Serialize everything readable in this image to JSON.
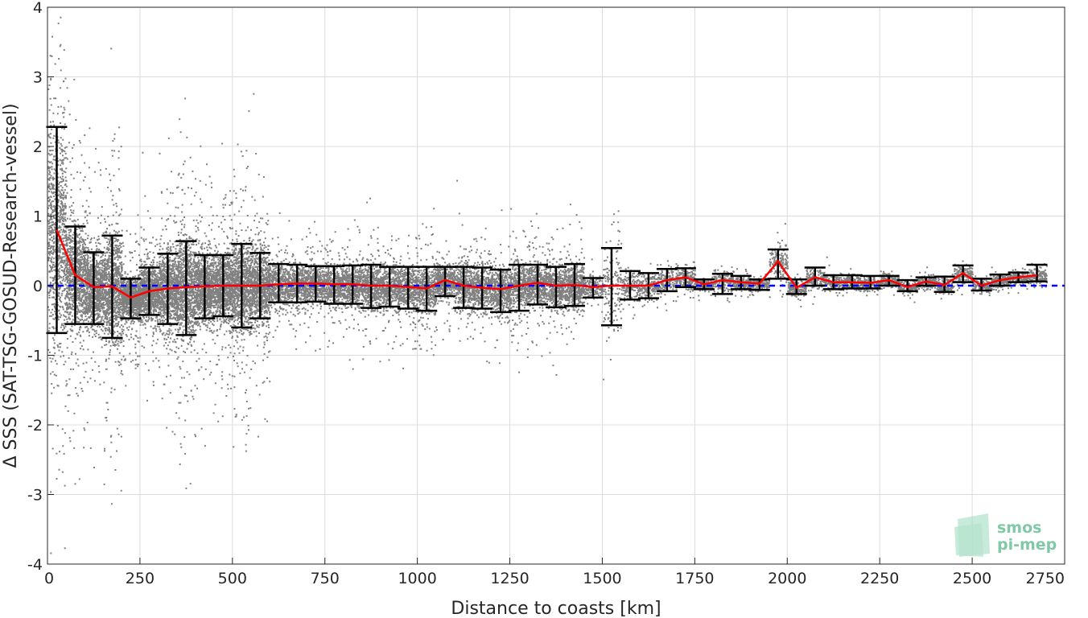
{
  "chart_data": {
    "type": "scatter",
    "xlabel": "Distance to coasts [km]",
    "ylabel": "Δ SSS (SAT-TSG-GOSUD-Research-vessel)",
    "xlim": [
      0,
      2750
    ],
    "ylim": [
      -4,
      4
    ],
    "xticks": [
      0,
      250,
      500,
      750,
      1000,
      1250,
      1500,
      1750,
      2000,
      2250,
      2500,
      2750
    ],
    "yticks": [
      -4,
      -3,
      -2,
      -1,
      0,
      1,
      2,
      3,
      4
    ],
    "grid": true,
    "scatter_color": "#808080",
    "mean_line_color": "#ff0000",
    "errorbar_color": "#000000",
    "zero_line_color": "#0000ff",
    "zero_line_value": 0,
    "series": [
      {
        "values": [
          {
            "x": 25,
            "mean": 0.8,
            "low": -0.68,
            "high": 2.28
          },
          {
            "x": 75,
            "mean": 0.15,
            "low": -0.55,
            "high": 0.85
          },
          {
            "x": 125,
            "mean": -0.02,
            "low": -0.55,
            "high": 0.48
          },
          {
            "x": 175,
            "mean": -0.01,
            "low": -0.75,
            "high": 0.72
          },
          {
            "x": 225,
            "mean": -0.17,
            "low": -0.47,
            "high": 0.1
          },
          {
            "x": 275,
            "mean": -0.08,
            "low": -0.42,
            "high": 0.26
          },
          {
            "x": 325,
            "mean": -0.04,
            "low": -0.55,
            "high": 0.46
          },
          {
            "x": 375,
            "mean": -0.02,
            "low": -0.71,
            "high": 0.64
          },
          {
            "x": 425,
            "mean": -0.01,
            "low": -0.47,
            "high": 0.44
          },
          {
            "x": 475,
            "mean": 0.0,
            "low": -0.44,
            "high": 0.44
          },
          {
            "x": 525,
            "mean": 0.0,
            "low": -0.6,
            "high": 0.6
          },
          {
            "x": 575,
            "mean": 0.0,
            "low": -0.47,
            "high": 0.47
          },
          {
            "x": 625,
            "mean": 0.02,
            "low": -0.24,
            "high": 0.31
          },
          {
            "x": 675,
            "mean": 0.03,
            "low": -0.24,
            "high": 0.3
          },
          {
            "x": 725,
            "mean": 0.03,
            "low": -0.23,
            "high": 0.28
          },
          {
            "x": 775,
            "mean": 0.02,
            "low": -0.26,
            "high": 0.28
          },
          {
            "x": 825,
            "mean": 0.02,
            "low": -0.26,
            "high": 0.29
          },
          {
            "x": 875,
            "mean": 0.0,
            "low": -0.32,
            "high": 0.3
          },
          {
            "x": 925,
            "mean": 0.0,
            "low": -0.3,
            "high": 0.27
          },
          {
            "x": 975,
            "mean": -0.02,
            "low": -0.33,
            "high": 0.27
          },
          {
            "x": 1025,
            "mean": -0.04,
            "low": -0.36,
            "high": 0.27
          },
          {
            "x": 1075,
            "mean": 0.08,
            "low": -0.15,
            "high": 0.27
          },
          {
            "x": 1125,
            "mean": 0.0,
            "low": -0.32,
            "high": 0.27
          },
          {
            "x": 1175,
            "mean": -0.03,
            "low": -0.33,
            "high": 0.26
          },
          {
            "x": 1225,
            "mean": -0.05,
            "low": -0.38,
            "high": 0.23
          },
          {
            "x": 1275,
            "mean": 0.0,
            "low": -0.36,
            "high": 0.3
          },
          {
            "x": 1325,
            "mean": 0.04,
            "low": -0.27,
            "high": 0.3
          },
          {
            "x": 1375,
            "mean": 0.0,
            "low": -0.31,
            "high": 0.27
          },
          {
            "x": 1425,
            "mean": 0.01,
            "low": -0.29,
            "high": 0.31
          },
          {
            "x": 1475,
            "mean": -0.02,
            "low": -0.17,
            "high": 0.11
          },
          {
            "x": 1525,
            "mean": 0.0,
            "low": -0.57,
            "high": 0.54
          },
          {
            "x": 1575,
            "mean": 0.0,
            "low": -0.2,
            "high": 0.21
          },
          {
            "x": 1625,
            "mean": 0.0,
            "low": -0.18,
            "high": 0.18
          },
          {
            "x": 1675,
            "mean": 0.08,
            "low": -0.08,
            "high": 0.24
          },
          {
            "x": 1725,
            "mean": 0.12,
            "low": -0.02,
            "high": 0.25
          },
          {
            "x": 1775,
            "mean": 0.02,
            "low": -0.05,
            "high": 0.09
          },
          {
            "x": 1825,
            "mean": 0.08,
            "low": -0.12,
            "high": 0.17
          },
          {
            "x": 1875,
            "mean": 0.05,
            "low": -0.05,
            "high": 0.14
          },
          {
            "x": 1925,
            "mean": 0.03,
            "low": -0.06,
            "high": 0.09
          },
          {
            "x": 1975,
            "mean": 0.35,
            "low": 0.1,
            "high": 0.52
          },
          {
            "x": 2025,
            "mean": -0.03,
            "low": -0.12,
            "high": 0.09
          },
          {
            "x": 2075,
            "mean": 0.12,
            "low": 0.0,
            "high": 0.26
          },
          {
            "x": 2125,
            "mean": 0.05,
            "low": -0.05,
            "high": 0.15
          },
          {
            "x": 2175,
            "mean": 0.05,
            "low": -0.04,
            "high": 0.15
          },
          {
            "x": 2225,
            "mean": 0.04,
            "low": -0.04,
            "high": 0.14
          },
          {
            "x": 2275,
            "mean": 0.08,
            "low": 0.0,
            "high": 0.14
          },
          {
            "x": 2325,
            "mean": -0.02,
            "low": -0.08,
            "high": 0.08
          },
          {
            "x": 2375,
            "mean": 0.06,
            "low": 0.0,
            "high": 0.12
          },
          {
            "x": 2425,
            "mean": 0.01,
            "low": -0.09,
            "high": 0.13
          },
          {
            "x": 2475,
            "mean": 0.18,
            "low": 0.05,
            "high": 0.29
          },
          {
            "x": 2525,
            "mean": 0.0,
            "low": -0.07,
            "high": 0.1
          },
          {
            "x": 2575,
            "mean": 0.08,
            "low": 0.0,
            "high": 0.16
          },
          {
            "x": 2625,
            "mean": 0.12,
            "low": 0.05,
            "high": 0.19
          },
          {
            "x": 2675,
            "mean": 0.15,
            "low": 0.06,
            "high": 0.3
          }
        ]
      }
    ]
  },
  "logo": {
    "line1": "smos",
    "line2": "pi-mep"
  }
}
